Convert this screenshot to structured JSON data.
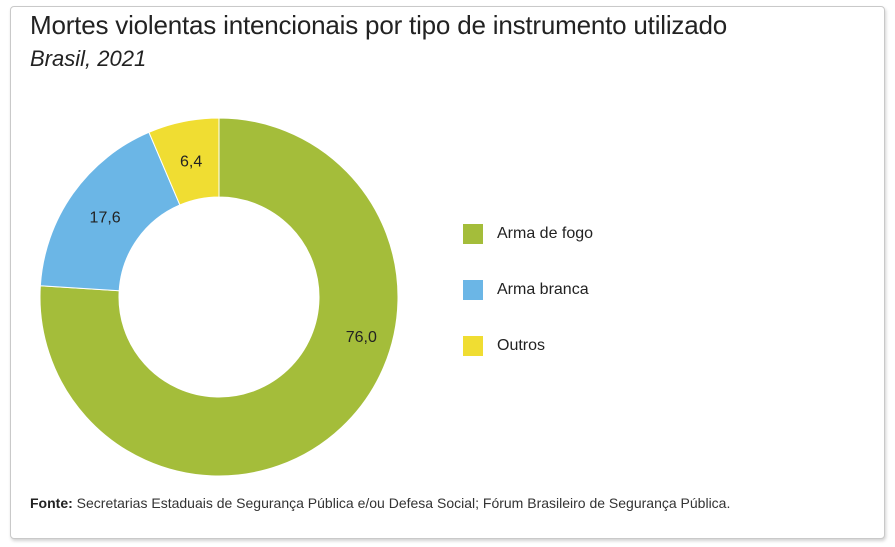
{
  "title": "Mortes violentas intencionais por tipo de instrumento utilizado",
  "subtitle": "Brasil, 2021",
  "source": {
    "label": "Fonte:",
    "text": " Secretarias Estaduais de Segurança Pública e/ou Defesa Social; Fórum Brasileiro de Segurança Pública."
  },
  "chart_data": {
    "type": "pie",
    "variant": "donut",
    "categories": [
      "Arma de fogo",
      "Arma branca",
      "Outros"
    ],
    "values": [
      76.0,
      17.6,
      6.4
    ],
    "data_labels": [
      "76,0",
      "17,6",
      "6,4"
    ],
    "colors": [
      "#a4bd3a",
      "#6bb6e6",
      "#f0dd32"
    ],
    "legend": [
      "Arma de fogo",
      "Arma branca",
      "Outros"
    ],
    "legend_position": "right"
  }
}
